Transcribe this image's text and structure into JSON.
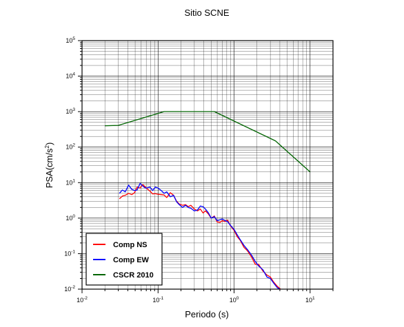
{
  "chart_data": {
    "type": "line",
    "title": "Sitio SCNE",
    "xlabel": "Periodo (s)",
    "ylabel_base": "PSA(cm/s",
    "ylabel_sup": "2",
    "ylabel_close": ")",
    "xscale": "log",
    "yscale": "log",
    "xlim": [
      0.01,
      20
    ],
    "ylim": [
      0.01,
      100000
    ],
    "grid": true,
    "legend_position": "bottom-left",
    "x_tick_labels": [
      {
        "value": 0.01,
        "base": "10",
        "exp": "-2"
      },
      {
        "value": 0.1,
        "base": "10",
        "exp": "-1"
      },
      {
        "value": 1,
        "base": "10",
        "exp": "0"
      },
      {
        "value": 10,
        "base": "10",
        "exp": "1"
      }
    ],
    "y_tick_labels": [
      {
        "value": 0.01,
        "base": "10",
        "exp": "-2"
      },
      {
        "value": 0.1,
        "base": "10",
        "exp": "-1"
      },
      {
        "value": 1,
        "base": "10",
        "exp": "0"
      },
      {
        "value": 10,
        "base": "10",
        "exp": "1"
      },
      {
        "value": 100,
        "base": "10",
        "exp": "2"
      },
      {
        "value": 1000,
        "base": "10",
        "exp": "3"
      },
      {
        "value": 10000,
        "base": "10",
        "exp": "4"
      },
      {
        "value": 100000,
        "base": "10",
        "exp": "5"
      }
    ],
    "series": [
      {
        "name": "Comp NS",
        "color": "#ff0000",
        "x": [
          0.031,
          0.034,
          0.037,
          0.041,
          0.045,
          0.049,
          0.053,
          0.058,
          0.063,
          0.068,
          0.073,
          0.078,
          0.085,
          0.092,
          0.1,
          0.11,
          0.12,
          0.13,
          0.145,
          0.16,
          0.175,
          0.19,
          0.21,
          0.23,
          0.25,
          0.27,
          0.3,
          0.33,
          0.36,
          0.39,
          0.42,
          0.46,
          0.5,
          0.55,
          0.6,
          0.65,
          0.7,
          0.76,
          0.82,
          0.9,
          1.0,
          1.1,
          1.2,
          1.35,
          1.5,
          1.7,
          1.9,
          2.1,
          2.4,
          2.7,
          3.0,
          3.3,
          3.7,
          4.2
        ],
        "y": [
          3.5,
          4.2,
          4.4,
          5.0,
          4.6,
          5.2,
          7.5,
          7.0,
          8.8,
          7.5,
          6.5,
          5.8,
          4.8,
          4.9,
          4.7,
          4.6,
          4.5,
          3.8,
          5.2,
          4.4,
          3.0,
          2.5,
          2.3,
          2.4,
          2.1,
          2.3,
          1.8,
          1.6,
          1.8,
          1.4,
          1.6,
          1.3,
          1.0,
          1.15,
          0.78,
          0.75,
          0.85,
          0.8,
          0.88,
          0.6,
          0.45,
          0.3,
          0.24,
          0.15,
          0.12,
          0.08,
          0.05,
          0.05,
          0.032,
          0.025,
          0.022,
          0.016,
          0.012,
          0.0095
        ]
      },
      {
        "name": "Comp EW",
        "color": "#0000ff",
        "x": [
          0.031,
          0.034,
          0.037,
          0.041,
          0.045,
          0.049,
          0.053,
          0.058,
          0.063,
          0.068,
          0.073,
          0.078,
          0.085,
          0.092,
          0.1,
          0.11,
          0.12,
          0.13,
          0.145,
          0.16,
          0.175,
          0.19,
          0.21,
          0.23,
          0.25,
          0.27,
          0.3,
          0.33,
          0.36,
          0.39,
          0.42,
          0.46,
          0.5,
          0.55,
          0.6,
          0.65,
          0.7,
          0.76,
          0.82,
          0.9,
          1.0,
          1.1,
          1.2,
          1.35,
          1.5,
          1.7,
          1.9,
          2.1,
          2.4,
          2.7,
          3.0,
          3.3,
          3.7,
          4.2
        ],
        "y": [
          5.0,
          6.2,
          5.5,
          8.5,
          6.5,
          6.0,
          6.2,
          9.5,
          8.0,
          7.0,
          7.2,
          7.5,
          6.0,
          7.5,
          7.0,
          6.0,
          5.0,
          5.5,
          4.0,
          4.4,
          2.9,
          2.4,
          2.0,
          2.3,
          2.0,
          1.9,
          1.6,
          1.7,
          2.2,
          2.1,
          1.8,
          1.4,
          1.0,
          1.1,
          0.85,
          0.9,
          0.95,
          0.85,
          0.8,
          0.62,
          0.48,
          0.34,
          0.25,
          0.17,
          0.13,
          0.09,
          0.06,
          0.045,
          0.035,
          0.022,
          0.02,
          0.015,
          0.011,
          0.0095
        ]
      },
      {
        "name": "CSCR 2010",
        "color": "#006400",
        "x": [
          0.02,
          0.03,
          0.12,
          0.55,
          3.5,
          10
        ],
        "y": [
          400,
          410,
          1000,
          1000,
          150,
          20
        ]
      }
    ]
  }
}
